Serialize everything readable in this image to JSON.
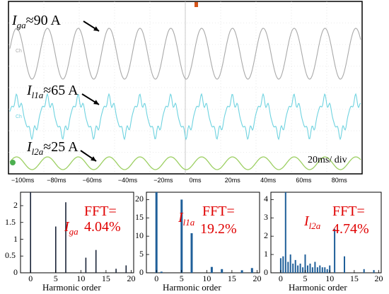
{
  "oscilloscope": {
    "div_label": "20ms/ div",
    "time_ticks": [
      "−100ms",
      "−80ms",
      "−60ms",
      "−40ms",
      "−20ms",
      "0ms",
      "20ms",
      "40ms",
      "60ms",
      "80ms"
    ],
    "channels": [
      {
        "symbol": "I",
        "sub": "ga",
        "value": "≈90 A",
        "color": "#a9a9a9"
      },
      {
        "symbol": "I",
        "sub": "l1a",
        "value": "≈65 A",
        "color": "#6fd3e0"
      },
      {
        "symbol": "I",
        "sub": "l2a",
        "value": "≈25 A",
        "color": "#9ccf62"
      }
    ]
  },
  "fft_panels": [
    {
      "symbol": "I",
      "sub": "ga",
      "fft_label": "FFT=",
      "thd": "4.04%",
      "x_label": "Harmonic   order"
    },
    {
      "symbol": "I",
      "sub": "l1a",
      "fft_label": "FFT=",
      "thd": "19.2%",
      "x_label": "Harmonic   order"
    },
    {
      "symbol": "I",
      "sub": "l2a",
      "fft_label": "FFT=",
      "thd": "4.74%",
      "x_label": "Harmonic   order"
    }
  ],
  "chart_data": [
    {
      "type": "bar",
      "title": "FFT= 4.04%",
      "xlabel": "Harmonic order",
      "ylabel": "",
      "x": [
        0,
        5,
        7,
        11,
        13,
        17,
        19
      ],
      "values": [
        2.4,
        1.38,
        2.1,
        0.45,
        0.68,
        0.12,
        0.22
      ],
      "ylim": [
        0,
        2.4
      ],
      "xticks": [
        0,
        5,
        10,
        15,
        20
      ],
      "yticks": [
        0,
        0.5,
        1,
        1.5,
        2
      ]
    },
    {
      "type": "bar",
      "title": "FFT= 19.2%",
      "xlabel": "Harmonic order",
      "ylabel": "",
      "x": [
        0,
        1,
        5,
        7,
        11,
        13,
        17,
        19
      ],
      "values": [
        23,
        0.3,
        20,
        10.8,
        1.6,
        1.0,
        0.7,
        1.3
      ],
      "ylim": [
        0,
        22
      ],
      "xticks": [
        0,
        5,
        10,
        15,
        20
      ],
      "yticks": [
        0,
        5,
        10,
        15,
        20
      ]
    },
    {
      "type": "bar",
      "title": "FFT= 4.74%",
      "xlabel": "Harmonic order",
      "ylabel": "",
      "x": [
        0,
        0.5,
        1,
        1.5,
        2,
        2.5,
        3,
        3.5,
        4,
        4.5,
        5,
        5.5,
        6,
        6.5,
        7,
        7.5,
        8,
        8.5,
        9,
        9.5,
        10,
        11,
        13,
        17,
        19
      ],
      "values": [
        0.8,
        0.9,
        4.5,
        0.6,
        1.0,
        0.5,
        0.7,
        0.4,
        0.5,
        0.3,
        1.0,
        0.4,
        0.5,
        0.3,
        0.6,
        0.3,
        0.4,
        0.3,
        0.3,
        0.2,
        0.4,
        2.4,
        0.9,
        0.2,
        0.15
      ],
      "ylim": [
        0,
        4.4
      ],
      "xticks": [
        0,
        5,
        10,
        15,
        20
      ],
      "yticks": [
        0,
        1,
        2,
        3,
        4
      ]
    }
  ]
}
